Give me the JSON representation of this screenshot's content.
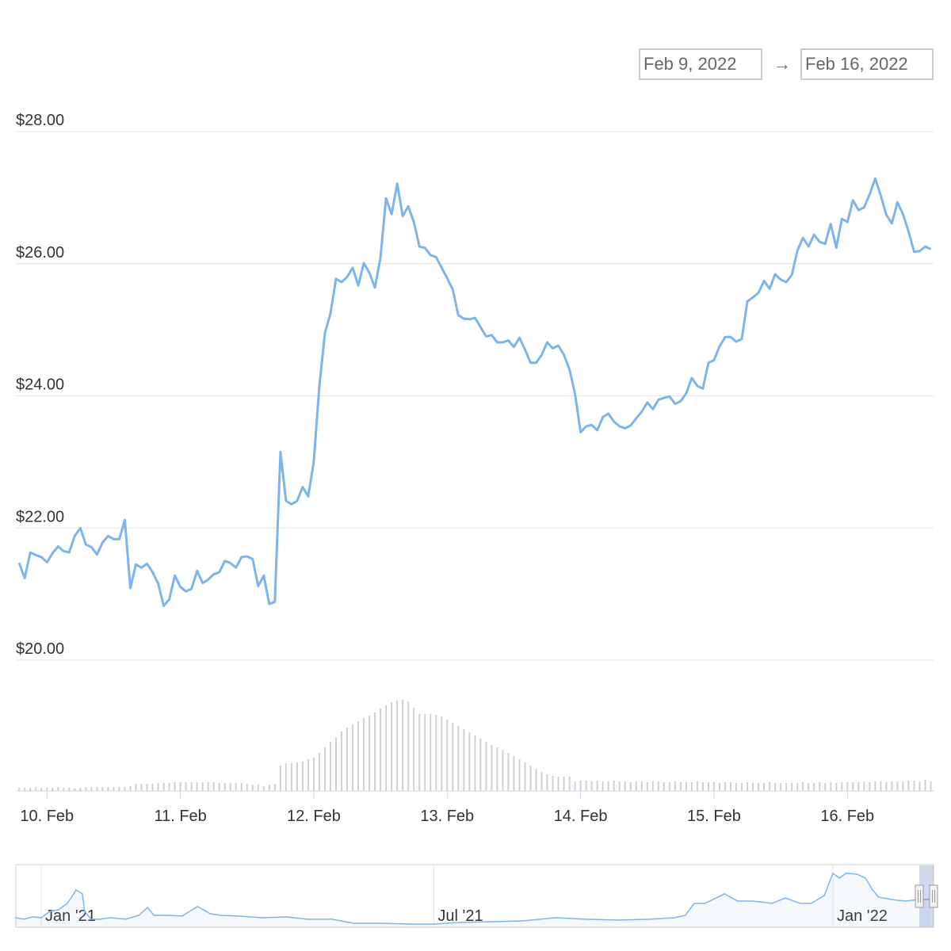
{
  "range_selector": {
    "from": "Feb 9, 2022",
    "arrow": "→",
    "to": "Feb 16, 2022"
  },
  "chart_data": [
    {
      "type": "line",
      "color": "#7cb5ec",
      "grid": true,
      "xlim": [
        -5.6,
        159.5
      ],
      "ylim": [
        20,
        28
      ],
      "yticks": [
        {
          "value": 20,
          "label": "$20.00"
        },
        {
          "value": 22,
          "label": "$22.00"
        },
        {
          "value": 24,
          "label": "$24.00"
        },
        {
          "value": 26,
          "label": "$26.00"
        },
        {
          "value": 28,
          "label": "$28.00"
        }
      ],
      "x": [
        -5,
        -4,
        -3,
        -2,
        -1,
        0,
        1,
        2,
        3,
        4,
        5,
        6,
        7,
        8,
        9,
        10,
        11,
        12,
        13,
        14,
        15,
        16,
        17,
        18,
        19,
        20,
        21,
        22,
        23,
        24,
        25,
        26,
        27,
        28,
        29,
        30,
        31,
        32,
        33,
        34,
        35,
        36,
        37,
        38,
        39,
        40,
        41,
        42,
        43,
        44,
        45,
        46,
        47,
        48,
        49,
        50,
        51,
        52,
        53,
        54,
        55,
        56,
        57,
        58,
        59,
        60,
        61,
        62,
        63,
        64,
        65,
        66,
        67,
        68,
        69,
        70,
        71,
        72,
        73,
        74,
        75,
        76,
        77,
        78,
        79,
        80,
        81,
        82,
        83,
        84,
        85,
        86,
        87,
        88,
        89,
        90,
        91,
        92,
        93,
        94,
        95,
        96,
        97,
        98,
        99,
        100,
        101,
        102,
        103,
        104,
        105,
        106,
        107,
        108,
        109,
        110,
        111,
        112,
        113,
        114,
        115,
        116,
        117,
        118,
        119,
        120,
        121,
        122,
        123,
        124,
        125,
        126,
        127,
        128,
        129,
        130,
        131,
        132,
        133,
        134,
        135,
        136,
        137,
        138,
        139,
        140,
        141,
        142,
        143,
        144,
        145,
        146,
        147,
        148,
        149,
        150,
        151,
        152,
        153,
        154,
        155,
        156,
        157,
        158,
        159
      ],
      "values": [
        21.47,
        21.24,
        21.63,
        21.59,
        21.56,
        21.48,
        21.62,
        21.72,
        21.65,
        21.63,
        21.88,
        22.0,
        21.75,
        21.71,
        21.6,
        21.78,
        21.88,
        21.83,
        21.83,
        22.12,
        21.09,
        21.45,
        21.4,
        21.46,
        21.33,
        21.16,
        20.82,
        20.92,
        21.28,
        21.11,
        21.04,
        21.08,
        21.35,
        21.17,
        21.22,
        21.3,
        21.33,
        21.5,
        21.47,
        21.4,
        21.56,
        21.57,
        21.53,
        21.12,
        21.28,
        20.85,
        20.88,
        23.15,
        22.41,
        22.36,
        22.41,
        22.62,
        22.48,
        23.0,
        24.15,
        24.95,
        25.25,
        25.77,
        25.72,
        25.8,
        25.94,
        25.67,
        26.01,
        25.86,
        25.64,
        26.09,
        26.99,
        26.75,
        27.21,
        26.72,
        26.87,
        26.63,
        26.26,
        26.24,
        26.13,
        26.1,
        25.94,
        25.78,
        25.61,
        25.22,
        25.17,
        25.16,
        25.18,
        25.04,
        24.9,
        24.92,
        24.81,
        24.81,
        24.84,
        24.74,
        24.88,
        24.7,
        24.5,
        24.5,
        24.62,
        24.81,
        24.72,
        24.76,
        24.62,
        24.4,
        24.03,
        23.45,
        23.54,
        23.56,
        23.48,
        23.68,
        23.73,
        23.61,
        23.54,
        23.51,
        23.55,
        23.66,
        23.76,
        23.9,
        23.8,
        23.94,
        23.97,
        23.99,
        23.88,
        23.92,
        24.04,
        24.27,
        24.15,
        24.11,
        24.5,
        24.54,
        24.75,
        24.89,
        24.89,
        24.82,
        24.86,
        25.43,
        25.49,
        25.56,
        25.74,
        25.62,
        25.84,
        25.76,
        25.72,
        25.83,
        26.2,
        26.39,
        26.26,
        26.44,
        26.33,
        26.3,
        26.6,
        26.24,
        26.68,
        26.63,
        26.96,
        26.81,
        26.85,
        27.05,
        27.29,
        27.03,
        26.74,
        26.61,
        26.93,
        26.75,
        26.49,
        26.18,
        26.19,
        26.26,
        26.22
      ]
    },
    {
      "type": "bar",
      "color": "#d0d0d0",
      "xlim": [
        -5.6,
        159.5
      ],
      "ylim": [
        0,
        120
      ],
      "xticks": [
        {
          "value": 0,
          "label": "10. Feb"
        },
        {
          "value": 24,
          "label": "11. Feb"
        },
        {
          "value": 48,
          "label": "12. Feb"
        },
        {
          "value": 72,
          "label": "13. Feb"
        },
        {
          "value": 96,
          "label": "14. Feb"
        },
        {
          "value": 120,
          "label": "15. Feb"
        },
        {
          "value": 144,
          "label": "16. Feb"
        }
      ],
      "values": [
        4,
        4,
        4,
        5,
        4,
        4,
        4,
        5,
        4,
        4,
        3,
        4,
        5,
        5,
        5,
        5,
        5,
        5,
        5,
        5,
        6,
        9,
        9,
        9,
        9,
        10,
        10,
        10,
        11,
        11,
        11,
        11,
        11,
        11,
        11,
        11,
        10,
        10,
        10,
        10,
        10,
        9,
        8,
        8,
        6,
        8,
        9,
        32,
        35,
        35,
        36,
        37,
        40,
        42,
        48,
        55,
        62,
        68,
        75,
        80,
        84,
        88,
        92,
        95,
        99,
        104,
        108,
        112,
        114,
        115,
        113,
        105,
        97,
        97,
        97,
        96,
        94,
        90,
        86,
        82,
        78,
        74,
        70,
        66,
        62,
        58,
        55,
        52,
        48,
        44,
        40,
        36,
        32,
        28,
        24,
        21,
        19,
        18,
        18,
        18,
        12,
        13,
        13,
        12,
        13,
        12,
        12,
        13,
        12,
        12,
        11,
        12,
        12,
        11,
        12,
        12,
        11,
        11,
        12,
        11,
        11,
        11,
        12,
        11,
        11,
        11,
        10,
        11,
        11,
        10,
        10,
        11,
        10,
        10,
        10,
        11,
        10,
        10,
        10,
        10,
        10,
        11,
        10,
        10,
        11,
        10,
        11,
        10,
        11,
        11,
        11,
        11,
        12,
        11,
        12,
        12,
        11,
        12,
        12,
        12,
        13,
        13,
        12,
        14,
        12
      ]
    },
    {
      "type": "area",
      "color": "#7cb5ec",
      "xlim": [
        -11.7,
        411.4
      ],
      "ylim": [
        4,
        52.75
      ],
      "xticks": [
        {
          "value": 0,
          "label": "Jan '21"
        },
        {
          "value": 181,
          "label": "Jul '21"
        },
        {
          "value": 365,
          "label": "Jan '22"
        }
      ],
      "x": [
        -12,
        -8,
        -4,
        0,
        4,
        8,
        12,
        15,
        16,
        19,
        20,
        23,
        27,
        32,
        39,
        45,
        49,
        52,
        58,
        65,
        72,
        78,
        83,
        91,
        102,
        113,
        123,
        134,
        144,
        156,
        171,
        181,
        193,
        208,
        222,
        237,
        251,
        266,
        281,
        292,
        297,
        301,
        306,
        312,
        315,
        321,
        328,
        337,
        343,
        350,
        355,
        361,
        365,
        368,
        371,
        376,
        380,
        383,
        386,
        392,
        398,
        405,
        410
      ],
      "values": [
        11.5,
        10.3,
        12.1,
        11.5,
        16.5,
        17.8,
        22.8,
        30.3,
        33.4,
        30.3,
        16.5,
        10.3,
        10.3,
        11.5,
        10.3,
        13.4,
        19.6,
        13.4,
        13.4,
        12.8,
        20.3,
        14.6,
        13.4,
        12.8,
        11.5,
        12.1,
        10.3,
        10.3,
        7.1,
        7.1,
        6.5,
        6.5,
        7.8,
        8.4,
        9.0,
        11.5,
        10.3,
        9.6,
        10.3,
        11.5,
        13.4,
        22.8,
        22.8,
        27.8,
        30.3,
        24.6,
        24.6,
        22.8,
        27.1,
        22.8,
        22.8,
        29.0,
        46.5,
        42.8,
        46.5,
        45.9,
        42.8,
        34.0,
        27.8,
        25.9,
        24.6,
        25.9,
        25.9
      ]
    }
  ]
}
